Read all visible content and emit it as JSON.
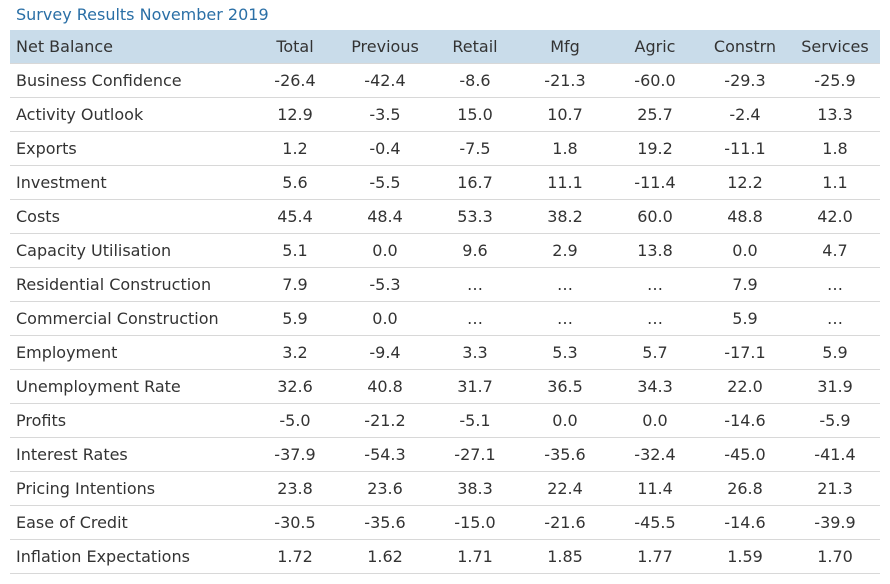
{
  "title": "Survey Results November 2019",
  "table": {
    "header": [
      "Net Balance",
      "Total",
      "Previous",
      "Retail",
      "Mfg",
      "Agric",
      "Constrn",
      "Services"
    ],
    "rows": [
      [
        "Business Confidence",
        "-26.4",
        "-42.4",
        "-8.6",
        "-21.3",
        "-60.0",
        "-29.3",
        "-25.9"
      ],
      [
        "Activity Outlook",
        "12.9",
        "-3.5",
        "15.0",
        "10.7",
        "25.7",
        "-2.4",
        "13.3"
      ],
      [
        "Exports",
        "1.2",
        "-0.4",
        "-7.5",
        "1.8",
        "19.2",
        "-11.1",
        "1.8"
      ],
      [
        "Investment",
        "5.6",
        "-5.5",
        "16.7",
        "11.1",
        "-11.4",
        "12.2",
        "1.1"
      ],
      [
        "Costs",
        "45.4",
        "48.4",
        "53.3",
        "38.2",
        "60.0",
        "48.8",
        "42.0"
      ],
      [
        "Capacity Utilisation",
        "5.1",
        "0.0",
        "9.6",
        "2.9",
        "13.8",
        "0.0",
        "4.7"
      ],
      [
        "Residential Construction",
        "7.9",
        "-5.3",
        "…",
        "…",
        "…",
        "7.9",
        "…"
      ],
      [
        "Commercial Construction",
        "5.9",
        "0.0",
        "…",
        "…",
        "…",
        "5.9",
        "…"
      ],
      [
        "Employment",
        "3.2",
        "-9.4",
        "3.3",
        "5.3",
        "5.7",
        "-17.1",
        "5.9"
      ],
      [
        "Unemployment Rate",
        "32.6",
        "40.8",
        "31.7",
        "36.5",
        "34.3",
        "22.0",
        "31.9"
      ],
      [
        "Profits",
        "-5.0",
        "-21.2",
        "-5.1",
        "0.0",
        "0.0",
        "-14.6",
        "-5.9"
      ],
      [
        "Interest Rates",
        "-37.9",
        "-54.3",
        "-27.1",
        "-35.6",
        "-32.4",
        "-45.0",
        "-41.4"
      ],
      [
        "Pricing Intentions",
        "23.8",
        "23.6",
        "38.3",
        "22.4",
        "11.4",
        "26.8",
        "21.3"
      ],
      [
        "Ease of Credit",
        "-30.5",
        "-35.6",
        "-15.0",
        "-21.6",
        "-45.5",
        "-14.6",
        "-39.9"
      ],
      [
        "Inflation Expectations",
        "1.72",
        "1.62",
        "1.71",
        "1.85",
        "1.77",
        "1.59",
        "1.70"
      ]
    ]
  }
}
